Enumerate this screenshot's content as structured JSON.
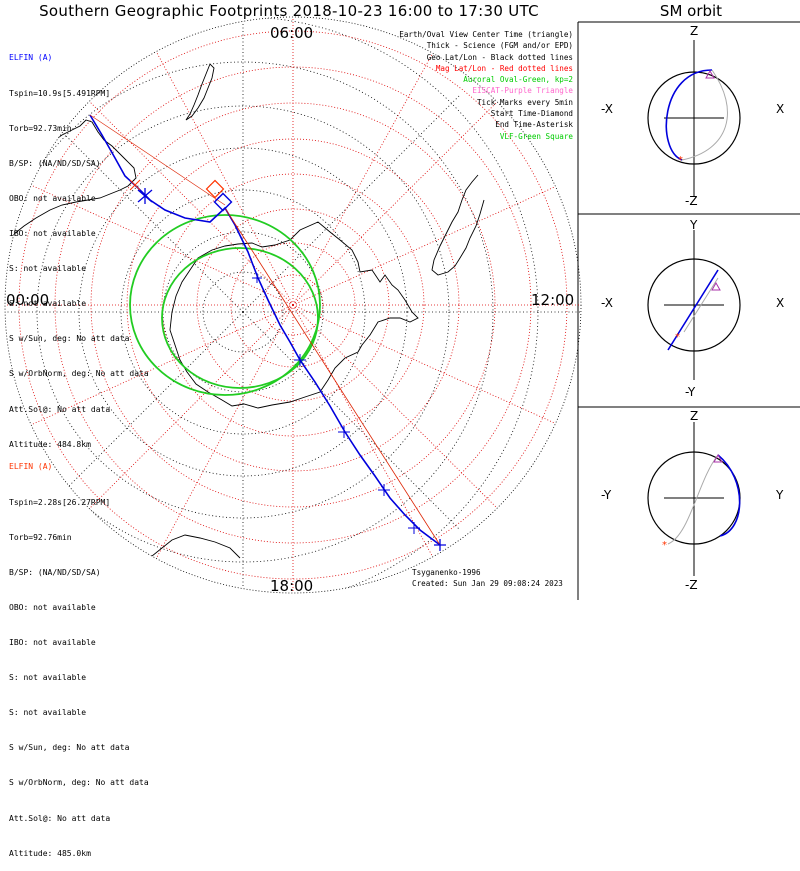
{
  "title": "Southern Geographic Footprints 2018-10-23 16:00 to 17:30 UTC",
  "sm_orbit_title": "SM orbit",
  "polar_labels": {
    "top": "06:00",
    "left": "00:00",
    "right": "12:00",
    "bottom": "18:00"
  },
  "elfin_a_info": {
    "name": "ELFIN (A)",
    "tspin": "Tspin=10.9s[5.491RPM]",
    "torb": "Torb=92.73min",
    "bsp": "B/SP: (NA/ND/SD/SA)",
    "obo": "OBO: not available",
    "ibo": "IBO: not available",
    "s1": "S: not available",
    "s2": "S: not available",
    "swsun": "S w/Sun, deg: No att data",
    "sworb": "S w/OrbNorm, deg: No att data",
    "attsol": "Att.Sol@: No att data",
    "altitude": "Altitude: 484.8km",
    "color": "#0000ff"
  },
  "elfin_b_info": {
    "name": "ELFIN (A)",
    "tspin": "Tspin=2.28s[26.27RPM]",
    "torb": "Torb=92.76min",
    "bsp": "B/SP: (NA/ND/SD/SA)",
    "obo": "OBO: not available",
    "ibo": "IBO: not available",
    "s1": "S: not available",
    "s2": "S: not available",
    "swsun": "S w/Sun, deg: No att data",
    "sworb": "S w/OrbNorm, deg: No att data",
    "attsol": "Att.Sol@: No att data",
    "altitude": "Altitude: 485.0km",
    "color": "#ff3300"
  },
  "legend": {
    "l1": "Earth/Oval View Center Time (triangle)",
    "l2": "Thick - Science (FGM and/or EPD)",
    "l3": "Geo Lat/Lon - Black dotted lines",
    "l4": "Mag Lat/Lon - Red dotted lines",
    "l5": "Auroral Oval-Green, kp=2",
    "l6": "EISCAT-Purple Triangle",
    "l7": "Tick Marks every 5min",
    "l8": "Start Time-Diamond",
    "l9": "End Time-Asterisk",
    "l10": "VLF-Green Square",
    "colors": {
      "l4": "#ff0000",
      "l5": "#00cc00",
      "l6": "#ff66cc",
      "l10": "#00cc00"
    }
  },
  "footer": {
    "author": "Tsyganenko-1996",
    "created": "Created: Sun Jan 29 09:08:24 2023"
  },
  "panels": [
    {
      "top": "Z",
      "bottom": "-Z",
      "left": "-X",
      "right": "X"
    },
    {
      "top": "Y",
      "bottom": "-Y",
      "left": "-X",
      "right": "X"
    },
    {
      "top": "Z",
      "bottom": "-Z",
      "left": "-Y",
      "right": "Y"
    }
  ]
}
